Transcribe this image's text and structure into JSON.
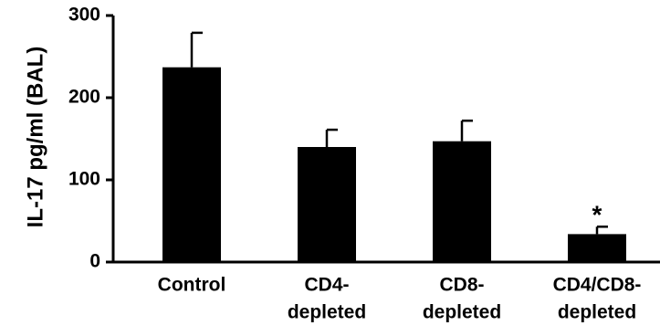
{
  "chart_data": {
    "type": "bar",
    "title": "",
    "xlabel": "",
    "ylabel": "IL-17 pg/ml (BAL)",
    "ylim": [
      0,
      300
    ],
    "yticks": [
      0,
      100,
      200,
      300
    ],
    "grid": false,
    "categories": [
      [
        "Control"
      ],
      [
        "CD4-",
        "depleted"
      ],
      [
        "CD8-",
        "depleted"
      ],
      [
        "CD4/CD8-",
        "depleted"
      ]
    ],
    "series": [
      {
        "values": [
          237,
          140,
          147,
          34
        ],
        "error": [
          42,
          21,
          25,
          9
        ],
        "color": "#000000"
      }
    ],
    "annotations": [
      {
        "category_index": 3,
        "text": "*"
      }
    ]
  }
}
